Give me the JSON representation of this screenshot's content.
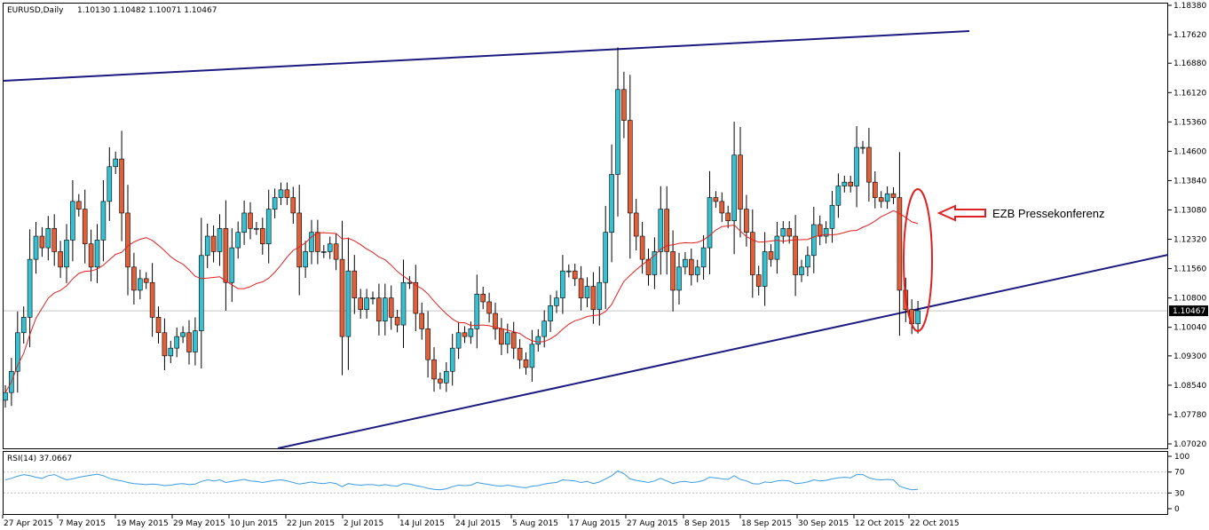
{
  "header": {
    "symbol_label": "EURUSD,Daily",
    "ohlc_label": "1.10130 1.10482 1.10071 1.10467"
  },
  "rsi": {
    "label": "RSI(14) 37.0667"
  },
  "annotation": {
    "text": "EZB Pressekonferenz",
    "color": "#e02020"
  },
  "colors": {
    "bull": "#36c0d0",
    "bear": "#e0603a",
    "ma": "#e02020",
    "trendline": "#1a1a80",
    "rsi_line": "#3c9be0",
    "grid": "#e8e8e8"
  },
  "chart_data": [
    {
      "type": "candlestick",
      "title": "EURUSD,Daily",
      "ylim": [
        1.0702,
        1.1838
      ],
      "y_ticks": [
        "1.18380",
        "1.17620",
        "1.16880",
        "1.16120",
        "1.15360",
        "1.14600",
        "1.13840",
        "1.13080",
        "1.12320",
        "1.11560",
        "1.10800",
        "1.10040",
        "1.09300",
        "1.08540",
        "1.07780",
        "1.07020"
      ],
      "current_price": "1.10467",
      "x_ticks": [
        "27 Apr 2015",
        "7 May 2015",
        "19 May 2015",
        "29 May 2015",
        "10 Jun 2015",
        "22 Jun 2015",
        "2 Jul 2015",
        "14 Jul 2015",
        "24 Jul 2015",
        "5 Aug 2015",
        "17 Aug 2015",
        "27 Aug 2015",
        "8 Sep 2015",
        "18 Sep 2015",
        "30 Sep 2015",
        "12 Oct 2015",
        "22 Oct 2015"
      ],
      "series": [
        {
          "type": "candlestick",
          "close": [
            1.0835,
            1.089,
            1.099,
            1.103,
            1.118,
            1.124,
            1.121,
            1.126,
            1.12,
            1.116,
            1.123,
            1.133,
            1.131,
            1.122,
            1.116,
            1.123,
            1.133,
            1.142,
            1.144,
            1.13,
            1.116,
            1.11,
            1.113,
            1.112,
            1.103,
            1.099,
            1.093,
            1.095,
            1.098,
            1.099,
            1.094,
            1.0995,
            1.119,
            1.124,
            1.12,
            1.126,
            1.112,
            1.121,
            1.125,
            1.13,
            1.126,
            1.126,
            1.122,
            1.131,
            1.134,
            1.136,
            1.134,
            1.13,
            1.116,
            1.12,
            1.125,
            1.12,
            1.12,
            1.122,
            1.118,
            1.098,
            1.115,
            1.108,
            1.105,
            1.108,
            1.108,
            1.102,
            1.108,
            1.103,
            1.101,
            1.112,
            1.112,
            1.104,
            1.1,
            1.092,
            1.087,
            1.086,
            1.089,
            1.095,
            1.099,
            1.098,
            1.1,
            1.109,
            1.107,
            1.104,
            1.1,
            1.096,
            1.099,
            1.095,
            1.092,
            1.09,
            1.096,
            1.098,
            1.102,
            1.106,
            1.108,
            1.115,
            1.115,
            1.113,
            1.108,
            1.111,
            1.105,
            1.112,
            1.125,
            1.14,
            1.162,
            1.154,
            1.13,
            1.124,
            1.118,
            1.114,
            1.12,
            1.131,
            1.12,
            1.11,
            1.116,
            1.118,
            1.114,
            1.116,
            1.121,
            1.134,
            1.133,
            1.13,
            1.128,
            1.145,
            1.131,
            1.125,
            1.114,
            1.111,
            1.12,
            1.118,
            1.124,
            1.126,
            1.124,
            1.114,
            1.116,
            1.119,
            1.127,
            1.124,
            1.126,
            1.132,
            1.137,
            1.138,
            1.137,
            1.147,
            1.147,
            1.138,
            1.134,
            1.133,
            1.135,
            1.134,
            1.11,
            1.105,
            1.1013,
            1.1047
          ]
        },
        {
          "name": "",
          "type": "line",
          "label": "moving average"
        }
      ]
    },
    {
      "type": "line",
      "title": "RSI(14) 37.0667",
      "ylim": [
        0,
        100
      ],
      "y_ticks": [
        "100",
        "70",
        "30",
        "0"
      ],
      "values": [
        55,
        58,
        62,
        65,
        63,
        60,
        58,
        63,
        65,
        60,
        55,
        57,
        60,
        62,
        64,
        66,
        63,
        58,
        55,
        53,
        50,
        48,
        47,
        46,
        47,
        46,
        44,
        45,
        47,
        48,
        46,
        47,
        52,
        55,
        53,
        55,
        50,
        52,
        54,
        56,
        53,
        52,
        50,
        52,
        54,
        55,
        53,
        50,
        47,
        49,
        51,
        49,
        48,
        50,
        48,
        42,
        48,
        46,
        45,
        46,
        46,
        44,
        46,
        44,
        43,
        48,
        47,
        44,
        42,
        39,
        37,
        36,
        38,
        42,
        45,
        44,
        45,
        50,
        48,
        46,
        44,
        43,
        45,
        43,
        41,
        40,
        43,
        44,
        47,
        49,
        50,
        55,
        54,
        53,
        50,
        52,
        48,
        51,
        57,
        63,
        72,
        67,
        57,
        54,
        52,
        50,
        53,
        58,
        53,
        48,
        51,
        52,
        50,
        51,
        54,
        60,
        59,
        57,
        56,
        63,
        56,
        53,
        48,
        47,
        51,
        50,
        53,
        54,
        53,
        48,
        49,
        51,
        55,
        53,
        54,
        57,
        59,
        60,
        59,
        65,
        65,
        59,
        56,
        55,
        56,
        55,
        43,
        39,
        36,
        37
      ]
    }
  ]
}
